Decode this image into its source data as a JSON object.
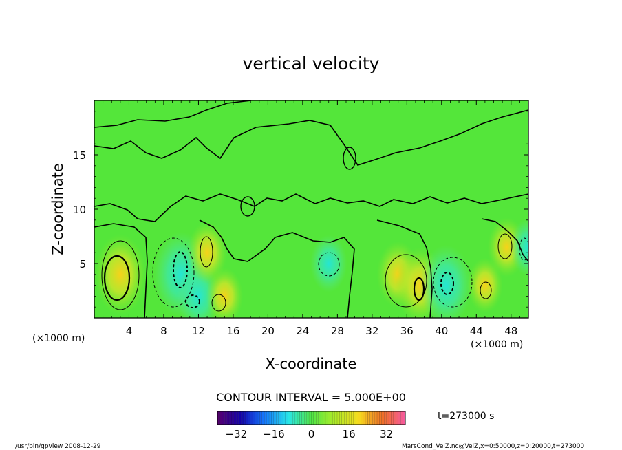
{
  "chart_data": {
    "type": "heatmap",
    "title": "vertical velocity",
    "xlabel": "X-coordinate",
    "ylabel": "Z-coordinate",
    "x_unit_left": "(×1000 m)",
    "x_unit_right": "(×1000 m)",
    "xlim": [
      0,
      50
    ],
    "ylim": [
      0,
      20
    ],
    "x_ticks": [
      4,
      8,
      12,
      16,
      20,
      24,
      28,
      32,
      36,
      40,
      44,
      48
    ],
    "y_ticks": [
      5,
      10,
      15
    ],
    "contour_interval_text": "CONTOUR INTERVAL = 5.000E+00",
    "time_text": "t=273000 s",
    "colorbar": {
      "range": [
        -40,
        40
      ],
      "ticks": [
        -32,
        -16,
        0,
        16,
        32
      ]
    },
    "field_features": [
      {
        "x": 3,
        "z": 4,
        "value": 18
      },
      {
        "x": 10,
        "z": 4,
        "value": -20
      },
      {
        "x": 12,
        "z": 2,
        "value": -12
      },
      {
        "x": 13,
        "z": 6,
        "value": 10
      },
      {
        "x": 15,
        "z": 2,
        "value": 8
      },
      {
        "x": 27,
        "z": 5,
        "value": -8
      },
      {
        "x": 35,
        "z": 4,
        "value": 12
      },
      {
        "x": 37.5,
        "z": 3,
        "value": 16
      },
      {
        "x": 40.5,
        "z": 3,
        "value": -18
      },
      {
        "x": 45,
        "z": 3,
        "value": 7
      },
      {
        "x": 47.5,
        "z": 6.5,
        "value": 9
      },
      {
        "x": 50,
        "z": 6.5,
        "value": -8
      }
    ],
    "background_value": 0
  },
  "footer": {
    "left": "/usr/bin/gpview   2008-12-29",
    "right": "MarsCond_VelZ.nc@VelZ,x=0:50000,z=0:20000,t=273000"
  }
}
